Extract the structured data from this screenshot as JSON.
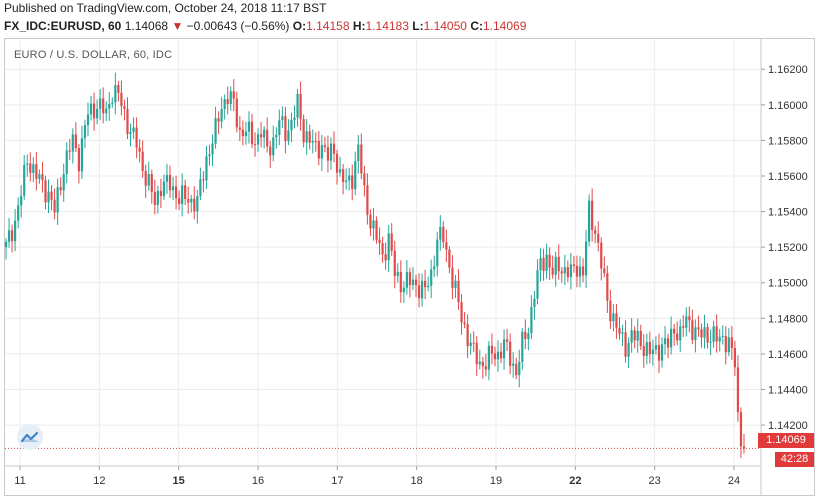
{
  "header": {
    "published": "Published on TradingView.com, October 24, 2018 11:17 BST",
    "symbol": "FX_IDC:EURUSD, 60",
    "last": "1.14068",
    "change": "−0.00643 (−0.56%)",
    "open_label": "O:",
    "open": "1.14158",
    "high_label": "H:",
    "high": "1.14183",
    "low_label": "L:",
    "low": "1.14050",
    "close_label": "C:",
    "close": "1.14069"
  },
  "tags": {
    "price": "1.14069",
    "timer": "42:28"
  },
  "colors": {
    "up": "#26a69a",
    "down": "#e04a4a",
    "grid": "#ececec",
    "price_line": "#e03a3a"
  },
  "chart_data": {
    "type": "candlestick",
    "title": "EURO / U.S. DOLLAR, 60, IDC",
    "x_ticks": [
      "11",
      "12",
      "15",
      "16",
      "17",
      "18",
      "19",
      "22",
      "23",
      "24"
    ],
    "bold_ticks": [
      "15",
      "22"
    ],
    "y_ticks": [
      "1.16200",
      "1.16000",
      "1.15800",
      "1.15600",
      "1.15400",
      "1.15200",
      "1.15000",
      "1.14800",
      "1.14600",
      "1.14400",
      "1.14200"
    ],
    "ylim": [
      1.1397,
      1.1637
    ],
    "last_price": 1.14069,
    "grid": true,
    "close_path": [
      [
        0,
        1.152
      ],
      [
        3,
        1.1535
      ],
      [
        5,
        1.155
      ],
      [
        7,
        1.157
      ],
      [
        10,
        1.156
      ],
      [
        14,
        1.155
      ],
      [
        16,
        1.154
      ],
      [
        19,
        1.1565
      ],
      [
        22,
        1.158
      ],
      [
        24,
        1.157
      ],
      [
        27,
        1.1595
      ],
      [
        30,
        1.16
      ],
      [
        33,
        1.1595
      ],
      [
        35,
        1.1608
      ],
      [
        37,
        1.1605
      ],
      [
        39,
        1.1595
      ],
      [
        41,
        1.1585
      ],
      [
        43,
        1.1578
      ],
      [
        45,
        1.1565
      ],
      [
        47,
        1.1555
      ],
      [
        49,
        1.1545
      ],
      [
        51,
        1.1555
      ],
      [
        54,
        1.1555
      ],
      [
        57,
        1.1548
      ],
      [
        60,
        1.1547
      ],
      [
        63,
        1.1545
      ],
      [
        66,
        1.157
      ],
      [
        69,
        1.1585
      ],
      [
        71,
        1.16
      ],
      [
        73,
        1.1605
      ],
      [
        75,
        1.16
      ],
      [
        77,
        1.1585
      ],
      [
        79,
        1.1585
      ],
      [
        82,
        1.158
      ],
      [
        84,
        1.1585
      ],
      [
        86,
        1.1575
      ],
      [
        88,
        1.158
      ],
      [
        90,
        1.159
      ],
      [
        92,
        1.1585
      ],
      [
        94,
        1.159
      ],
      [
        96,
        1.16
      ],
      [
        98,
        1.1585
      ],
      [
        100,
        1.158
      ],
      [
        102,
        1.1575
      ],
      [
        104,
        1.1578
      ],
      [
        106,
        1.157
      ],
      [
        108,
        1.1575
      ],
      [
        110,
        1.156
      ],
      [
        112,
        1.1555
      ],
      [
        114,
        1.156
      ],
      [
        116,
        1.1575
      ],
      [
        118,
        1.155
      ],
      [
        120,
        1.1535
      ],
      [
        122,
        1.1525
      ],
      [
        124,
        1.1515
      ],
      [
        126,
        1.1525
      ],
      [
        128,
        1.1505
      ],
      [
        130,
        1.15
      ],
      [
        132,
        1.15
      ],
      [
        134,
        1.15
      ],
      [
        136,
        1.1498
      ],
      [
        138,
        1.1495
      ],
      [
        140,
        1.1505
      ],
      [
        142,
        1.1525
      ],
      [
        144,
        1.1525
      ],
      [
        146,
        1.151
      ],
      [
        148,
        1.1495
      ],
      [
        150,
        1.148
      ],
      [
        152,
        1.147
      ],
      [
        154,
        1.146
      ],
      [
        156,
        1.1455
      ],
      [
        158,
        1.1455
      ],
      [
        160,
        1.146
      ],
      [
        162,
        1.146
      ],
      [
        164,
        1.1465
      ],
      [
        166,
        1.1458
      ],
      [
        168,
        1.145
      ],
      [
        170,
        1.1465
      ],
      [
        172,
        1.1475
      ],
      [
        174,
        1.1495
      ],
      [
        176,
        1.151
      ],
      [
        178,
        1.1515
      ],
      [
        180,
        1.1505
      ],
      [
        182,
        1.151
      ],
      [
        184,
        1.1507
      ],
      [
        186,
        1.1505
      ],
      [
        188,
        1.151
      ],
      [
        190,
        1.1505
      ],
      [
        192,
        1.154
      ],
      [
        194,
        1.153
      ],
      [
        196,
        1.151
      ],
      [
        198,
        1.149
      ],
      [
        200,
        1.148
      ],
      [
        202,
        1.147
      ],
      [
        204,
        1.1465
      ],
      [
        206,
        1.147
      ],
      [
        208,
        1.1468
      ],
      [
        210,
        1.1465
      ],
      [
        212,
        1.146
      ],
      [
        214,
        1.1462
      ],
      [
        216,
        1.1465
      ],
      [
        218,
        1.1465
      ],
      [
        220,
        1.1475
      ],
      [
        222,
        1.147
      ],
      [
        224,
        1.148
      ],
      [
        226,
        1.1475
      ],
      [
        228,
        1.147
      ],
      [
        230,
        1.1472
      ],
      [
        232,
        1.147
      ],
      [
        234,
        1.1468
      ],
      [
        236,
        1.147
      ],
      [
        238,
        1.1465
      ],
      [
        240,
        1.1455
      ],
      [
        241,
        1.1425
      ],
      [
        242,
        1.1413
      ],
      [
        243,
        1.1407
      ]
    ]
  }
}
